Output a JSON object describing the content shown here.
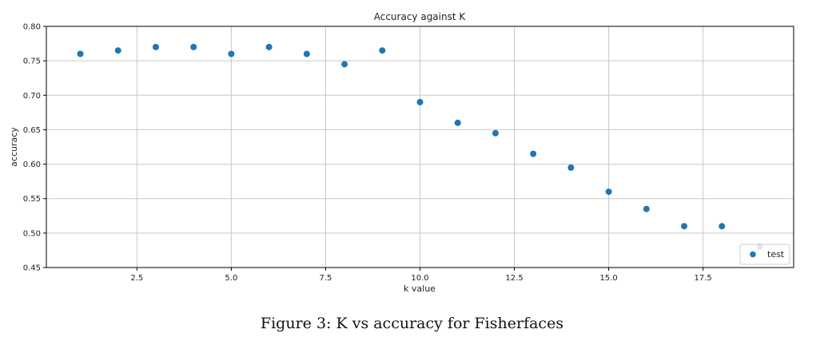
{
  "caption": "Figure 3: K vs accuracy for Fisherfaces",
  "colors": {
    "marker": "#1f77b4",
    "grid": "#c8c8c8",
    "axis": "#000000"
  },
  "chart_data": {
    "type": "scatter",
    "title": "Accuracy against K",
    "xlabel": "k value",
    "ylabel": "accuracy",
    "xlim": [
      0.1,
      19.9
    ],
    "ylim": [
      0.45,
      0.8
    ],
    "xticks": [
      2.5,
      5.0,
      7.5,
      10.0,
      12.5,
      15.0,
      17.5
    ],
    "xtick_labels": [
      "2.5",
      "5.0",
      "7.5",
      "10.0",
      "12.5",
      "15.0",
      "17.5"
    ],
    "yticks": [
      0.45,
      0.5,
      0.55,
      0.6,
      0.65,
      0.7,
      0.75,
      0.8
    ],
    "ytick_labels": [
      "0.45",
      "0.50",
      "0.55",
      "0.60",
      "0.65",
      "0.70",
      "0.75",
      "0.80"
    ],
    "grid": true,
    "legend_position": "bottom-right",
    "series": [
      {
        "name": "test",
        "x": [
          1,
          2,
          3,
          4,
          5,
          6,
          7,
          8,
          9,
          10,
          11,
          12,
          13,
          14,
          15,
          16,
          17,
          18,
          19
        ],
        "y": [
          0.76,
          0.765,
          0.77,
          0.77,
          0.76,
          0.77,
          0.76,
          0.745,
          0.765,
          0.69,
          0.66,
          0.645,
          0.615,
          0.595,
          0.56,
          0.535,
          0.51,
          0.51,
          0.48
        ]
      }
    ]
  }
}
